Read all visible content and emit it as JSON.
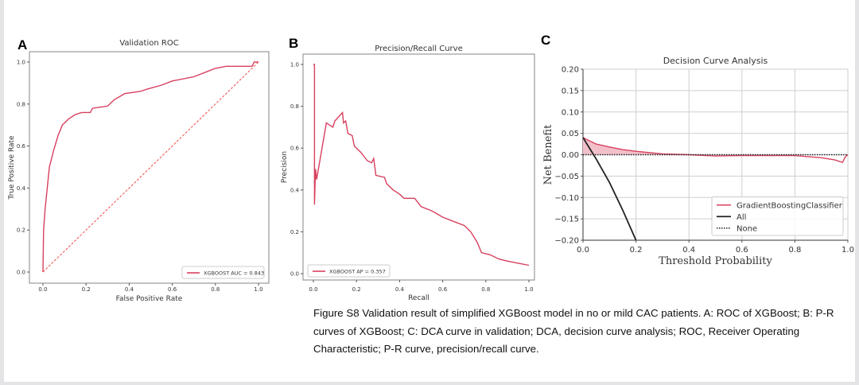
{
  "caption": {
    "lines": [
      "Figure S8 Validation result of simplified XGBoost model in no or mild CAC patients. A: ROC of XGBoost; B: P-R",
      "curves of XGBoost; C: DCA curve in validation; DCA, decision curve analysis; ROC, Receiver Operating",
      "Characteristic; P-R curve, precision/recall curve."
    ]
  },
  "colors": {
    "model": "#d8405f",
    "diagonal": "#f04848",
    "all": "#222222",
    "fill": "#f2c0c9"
  },
  "chart_data": [
    {
      "panel": "A",
      "type": "line",
      "title": "Validation ROC",
      "xlabel": "False Positive Rate",
      "ylabel": "True Positive Rate",
      "xlim": [
        0,
        1
      ],
      "ylim": [
        0,
        1
      ],
      "grid": false,
      "xticks": [
        "0.0",
        "0.2",
        "0.4",
        "0.6",
        "0.8",
        "1.0"
      ],
      "yticks": [
        "0.0",
        "0.2",
        "0.4",
        "0.6",
        "0.8",
        "1.0"
      ],
      "legend_position": "bottom-right",
      "series": [
        {
          "name": "XGBOOST AUC = 0.843",
          "style": "solid",
          "x": [
            0,
            0.003,
            0.01,
            0.02,
            0.03,
            0.05,
            0.07,
            0.09,
            0.12,
            0.15,
            0.18,
            0.22,
            0.23,
            0.3,
            0.33,
            0.38,
            0.45,
            0.48,
            0.55,
            0.6,
            0.7,
            0.75,
            0.8,
            0.85,
            0.97,
            0.98,
            1.0
          ],
          "y": [
            0,
            0.2,
            0.3,
            0.4,
            0.5,
            0.58,
            0.65,
            0.7,
            0.73,
            0.75,
            0.76,
            0.76,
            0.78,
            0.79,
            0.82,
            0.85,
            0.86,
            0.87,
            0.89,
            0.91,
            0.93,
            0.95,
            0.97,
            0.98,
            0.98,
            1.0,
            1.0
          ]
        },
        {
          "name": "chance",
          "style": "dashed",
          "legend": false,
          "x": [
            0,
            1
          ],
          "y": [
            0,
            1
          ]
        }
      ]
    },
    {
      "panel": "B",
      "type": "line",
      "title": "Precision/Recall Curve",
      "xlabel": "Recall",
      "ylabel": "Precision",
      "xlim": [
        0,
        1
      ],
      "ylim": [
        0,
        1
      ],
      "grid": false,
      "xticks": [
        "0.0",
        "0.2",
        "0.4",
        "0.6",
        "0.8",
        "1.0"
      ],
      "yticks": [
        "0.0",
        "0.2",
        "0.4",
        "0.6",
        "0.8",
        "1.0"
      ],
      "legend_position": "bottom-left",
      "series": [
        {
          "name": "XGBOOST AP = 0.357",
          "style": "solid",
          "x": [
            0,
            0.005,
            0.005,
            0.01,
            0.015,
            0.06,
            0.09,
            0.1,
            0.135,
            0.14,
            0.15,
            0.16,
            0.18,
            0.19,
            0.22,
            0.25,
            0.27,
            0.28,
            0.29,
            0.33,
            0.34,
            0.37,
            0.4,
            0.42,
            0.47,
            0.5,
            0.55,
            0.6,
            0.65,
            0.7,
            0.73,
            0.76,
            0.78,
            0.82,
            0.86,
            0.9,
            0.95,
            1.0
          ],
          "y": [
            1.0,
            1.0,
            0.33,
            0.5,
            0.45,
            0.72,
            0.7,
            0.73,
            0.77,
            0.72,
            0.73,
            0.67,
            0.66,
            0.61,
            0.58,
            0.54,
            0.53,
            0.55,
            0.47,
            0.46,
            0.43,
            0.4,
            0.38,
            0.36,
            0.36,
            0.32,
            0.3,
            0.27,
            0.25,
            0.23,
            0.2,
            0.15,
            0.1,
            0.09,
            0.07,
            0.06,
            0.05,
            0.04
          ]
        }
      ]
    },
    {
      "panel": "C",
      "type": "line",
      "title": "Decision Curve Analysis",
      "xlabel": "Threshold Probability",
      "ylabel": "Net Benefit",
      "xlim": [
        0,
        1
      ],
      "ylim": [
        -0.2,
        0.2
      ],
      "grid": true,
      "xticks": [
        "0.0",
        "0.2",
        "0.4",
        "0.6",
        "0.8",
        "1.0"
      ],
      "yticks": [
        "−0.20",
        "−0.15",
        "−0.10",
        "−0.05",
        "0.00",
        "0.05",
        "0.10",
        "0.15",
        "0.20"
      ],
      "legend_position": "bottom-right",
      "series": [
        {
          "name": "GradientBoostingClassifier",
          "style": "model",
          "x": [
            0,
            0.05,
            0.1,
            0.15,
            0.2,
            0.3,
            0.4,
            0.5,
            0.6,
            0.8,
            0.9,
            0.95,
            0.98,
            0.99,
            1.0
          ],
          "y": [
            0.04,
            0.025,
            0.018,
            0.012,
            0.008,
            0.002,
            0,
            -0.003,
            -0.002,
            -0.002,
            -0.007,
            -0.012,
            -0.018,
            -0.005,
            0.0
          ]
        },
        {
          "name": "All",
          "style": "all",
          "x": [
            0,
            0.05,
            0.1,
            0.15,
            0.2
          ],
          "y": [
            0.04,
            -0.01,
            -0.065,
            -0.13,
            -0.2
          ]
        },
        {
          "name": "None",
          "style": "dotted",
          "x": [
            0,
            1
          ],
          "y": [
            0,
            0
          ]
        }
      ]
    }
  ]
}
